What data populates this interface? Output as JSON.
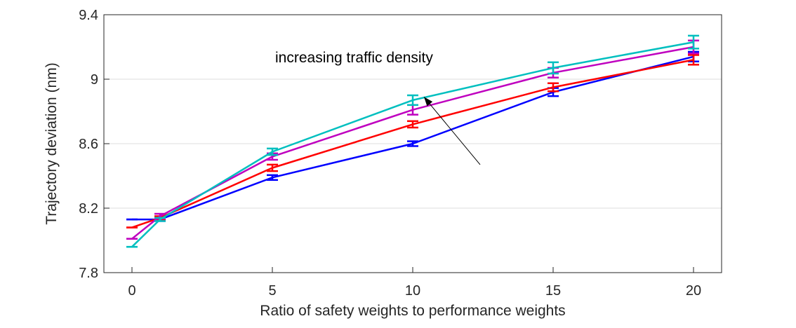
{
  "chart_data": {
    "type": "line",
    "title": "",
    "xlabel": "Ratio of safety weights to performance weights",
    "ylabel": "Trajectory deviation (nm)",
    "xlim": [
      -1,
      21
    ],
    "ylim": [
      7.8,
      9.4
    ],
    "x_ticks": [
      0,
      5,
      10,
      15,
      20
    ],
    "x_tick_labels": [
      "0",
      "5",
      "10",
      "15",
      "20"
    ],
    "y_ticks": [
      7.8,
      8.2,
      8.6,
      9.0,
      9.4
    ],
    "y_tick_labels": [
      "7.8",
      "8.2",
      "8.6",
      "9",
      "9.4"
    ],
    "grid": "horizontal",
    "x": [
      0,
      1,
      5,
      10,
      15,
      20
    ],
    "series": [
      {
        "name": "blue",
        "color": "#0000ff",
        "values": [
          8.13,
          8.13,
          8.39,
          8.6,
          8.92,
          9.14
        ],
        "errors": [
          0.0,
          0.01,
          0.015,
          0.015,
          0.025,
          0.03
        ]
      },
      {
        "name": "red",
        "color": "#ff0000",
        "values": [
          8.08,
          8.14,
          8.45,
          8.72,
          8.95,
          9.12
        ],
        "errors": [
          0.0,
          0.01,
          0.02,
          0.02,
          0.025,
          0.03
        ]
      },
      {
        "name": "magenta",
        "color": "#bf00bf",
        "values": [
          8.01,
          8.15,
          8.52,
          8.81,
          9.04,
          9.2
        ],
        "errors": [
          0.0,
          0.015,
          0.02,
          0.03,
          0.03,
          0.04
        ]
      },
      {
        "name": "cyan",
        "color": "#00bfbf",
        "values": [
          7.96,
          8.13,
          8.55,
          8.87,
          9.07,
          9.23
        ],
        "errors": [
          0.0,
          0.01,
          0.02,
          0.03,
          0.035,
          0.04
        ]
      }
    ],
    "annotation": {
      "text": "increasing traffic density",
      "arrow_from": [
        12.4,
        8.47
      ],
      "arrow_to": [
        10.4,
        8.89
      ]
    }
  }
}
